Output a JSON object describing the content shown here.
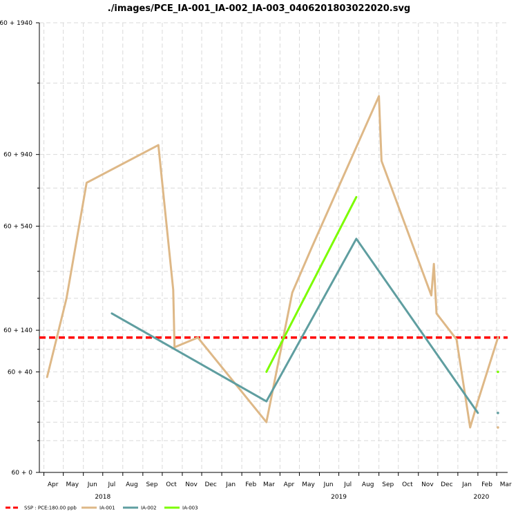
{
  "chart_data": {
    "type": "line",
    "title": "./images/PCE_IA-001_IA-002_IA-003_0406201803022020.svg",
    "y_ticks": [
      "60 + 1940",
      "60 + 940",
      "60 + 540",
      "60 + 140",
      "60 + 40",
      "60 + 0"
    ],
    "x_month_labels": [
      "Apr",
      "May",
      "Jun",
      "Jul",
      "Aug",
      "Sep",
      "Oct",
      "Nov",
      "Dec",
      "Jan",
      "Feb",
      "Mar",
      "Apr",
      "May",
      "Jun",
      "Jul",
      "Aug",
      "Sep",
      "Oct",
      "Nov",
      "Dec",
      "Jan",
      "Feb",
      "Mar"
    ],
    "x_year_labels": [
      "2018",
      "2019",
      "2020"
    ],
    "threshold": {
      "label": "SSP : PCE:180.00 ppb",
      "value": 180,
      "color": "#ff0000"
    },
    "series": [
      {
        "name": "IA-001",
        "color": "#deb887",
        "points": [
          [
            "2018-04-06",
            90
          ],
          [
            "2018-05-06",
            300
          ],
          [
            "2018-06-06",
            830
          ],
          [
            "2018-09-25",
            1060
          ],
          [
            "2018-10-18",
            330
          ],
          [
            "2018-10-20",
            155
          ],
          [
            "2018-11-25",
            180
          ],
          [
            "2019-03-11",
            25
          ],
          [
            "2019-04-20",
            320
          ],
          [
            "2019-05-20",
            500
          ],
          [
            "2019-09-01",
            1400
          ],
          [
            "2019-09-05",
            960
          ],
          [
            "2019-11-21",
            310
          ],
          [
            "2019-11-25",
            430
          ],
          [
            "2019-11-29",
            250
          ],
          [
            "2019-12-30",
            175
          ],
          [
            "2020-01-20",
            20
          ],
          [
            "2020-02-01",
            50
          ],
          [
            "2020-03-03",
            180
          ]
        ],
        "isolated_points": [
          [
            "2020-03-03",
            20
          ]
        ]
      },
      {
        "name": "IA-002",
        "color": "#5f9ea0",
        "points": [
          [
            "2018-07-15",
            250
          ],
          [
            "2019-03-11",
            50
          ],
          [
            "2019-07-28",
            540
          ],
          [
            "2020-02-01",
            35
          ]
        ],
        "isolated_points": [
          [
            "2020-03-03",
            35
          ]
        ]
      },
      {
        "name": "IA-003",
        "color": "#7cfc00",
        "points": [
          [
            "2019-03-11",
            100
          ],
          [
            "2019-07-28",
            750
          ]
        ],
        "isolated_points": [
          [
            "2020-03-03",
            100
          ]
        ]
      }
    ],
    "grid": true,
    "legend_position": "bottom-left"
  }
}
